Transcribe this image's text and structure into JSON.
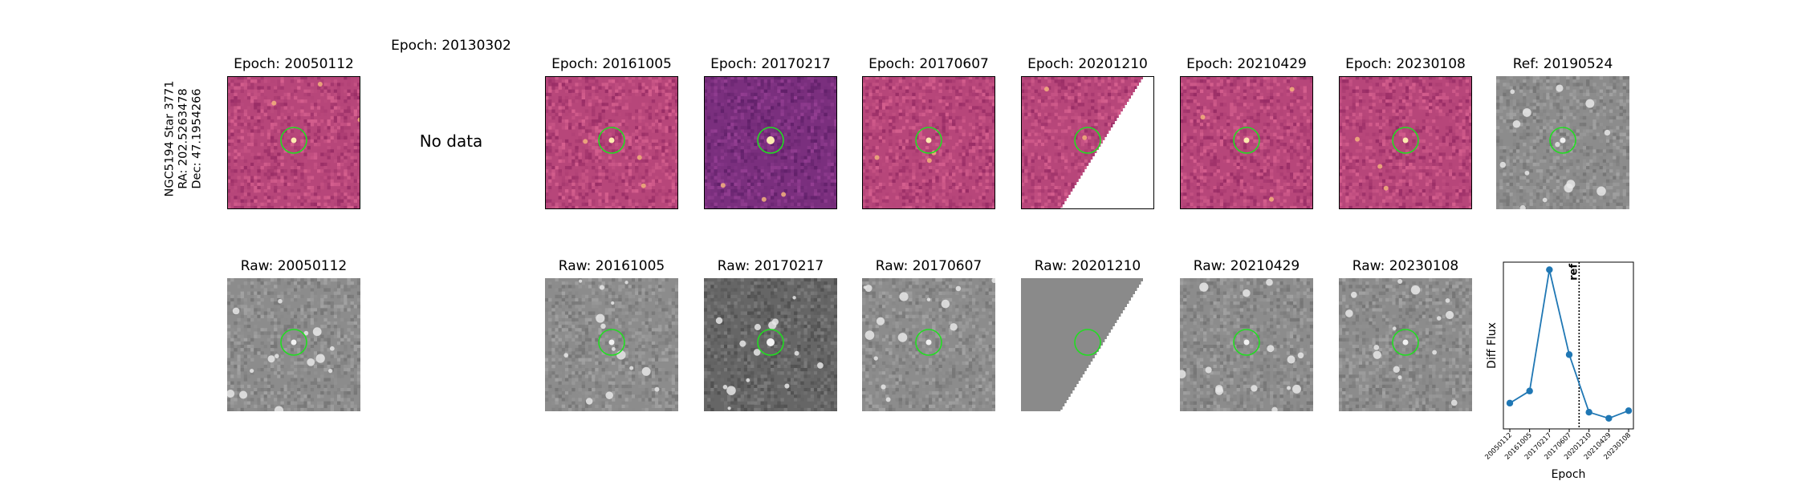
{
  "star_info": {
    "name": "NGC5194 Star 3771",
    "ra": "RA: 202.5263478",
    "dec": "Dec: 47.1954266"
  },
  "diff_row": [
    {
      "title": "Epoch: 20050112",
      "has_data": true,
      "style": "diff"
    },
    {
      "title": "Epoch: 20130302",
      "has_data": false,
      "no_data_label": "No data"
    },
    {
      "title": "Epoch: 20161005",
      "has_data": true,
      "style": "diff"
    },
    {
      "title": "Epoch: 20170217",
      "has_data": true,
      "style": "diff-dark"
    },
    {
      "title": "Epoch: 20170607",
      "has_data": true,
      "style": "diff"
    },
    {
      "title": "Epoch: 20201210",
      "has_data": true,
      "style": "diff-partial"
    },
    {
      "title": "Epoch: 20210429",
      "has_data": true,
      "style": "diff"
    },
    {
      "title": "Epoch: 20230108",
      "has_data": true,
      "style": "diff"
    },
    {
      "title": "Ref: 20190524",
      "has_data": true,
      "style": "ref"
    }
  ],
  "raw_row": [
    {
      "title": "Raw: 20050112",
      "style": "raw"
    },
    {
      "title": "Raw: 20161005",
      "style": "raw"
    },
    {
      "title": "Raw: 20170217",
      "style": "raw-dark"
    },
    {
      "title": "Raw: 20170607",
      "style": "raw"
    },
    {
      "title": "Raw: 20201210",
      "style": "raw-partial"
    },
    {
      "title": "Raw: 20210429",
      "style": "raw"
    },
    {
      "title": "Raw: 20230108",
      "style": "raw"
    }
  ],
  "colors": {
    "diff_base": "#b7467a",
    "diff_dark_base": "#7a2f7e",
    "marker_circle": "#22dd22",
    "series_line": "#1f77b4",
    "ref_line": "#000000"
  },
  "chart_data": {
    "type": "line",
    "categories": [
      "20050112",
      "20161005",
      "20170217",
      "20170607",
      "20201210",
      "20210429",
      "20230108"
    ],
    "series": [
      {
        "values": [
          0.12,
          0.2,
          1.0,
          0.44,
          0.06,
          0.02,
          0.07
        ]
      }
    ],
    "ref_marker": {
      "label": "ref",
      "position_between": [
        "20170607",
        "20201210"
      ]
    },
    "xlabel": "Epoch",
    "ylabel": "Diff Flux",
    "ylim": [
      -0.05,
      1.05
    ],
    "grid": false
  }
}
